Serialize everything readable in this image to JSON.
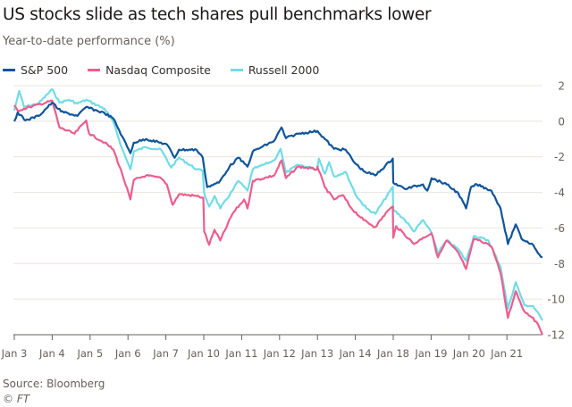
{
  "chart_data": {
    "type": "line",
    "title": "US stocks slide as tech shares pull benchmarks lower",
    "subtitle": "Year-to-date performance (%)",
    "xlabel": "",
    "ylabel": "",
    "categories": [
      "Jan 3",
      "Jan 4",
      "Jan 5",
      "Jan 6",
      "Jan 7",
      "Jan 10",
      "Jan 11",
      "Jan 12",
      "Jan 13",
      "Jan 14",
      "Jan 18",
      "Jan 19",
      "Jan 20",
      "Jan 21"
    ],
    "yticks": [
      2,
      0,
      -2,
      -4,
      -6,
      -8,
      -10,
      -12
    ],
    "ylim": [
      -12,
      2
    ],
    "grid": true,
    "legend_position": "top-left",
    "y_axis_side": "right",
    "series": [
      {
        "name": "S&P 500",
        "color": "#0f5499",
        "points": [
          [
            "Jan 3 09:30",
            0.0
          ],
          [
            "Jan 3 10:05",
            0.5
          ],
          [
            "Jan 3 11:25",
            0.05
          ],
          [
            "Jan 3 13:40",
            0.3
          ],
          [
            "Jan 4 09:30",
            1.05
          ],
          [
            "Jan 4 11:00",
            0.55
          ],
          [
            "Jan 4 13:50",
            0.3
          ],
          [
            "Jan 4 15:20",
            0.8
          ],
          [
            "Jan 5 12:00",
            0.45
          ],
          [
            "Jan 5 13:30",
            0.15
          ],
          [
            "Jan 5 15:00",
            -0.85
          ],
          [
            "Jan 6 09:55",
            -1.8
          ],
          [
            "Jan 6 10:30",
            -1.2
          ],
          [
            "Jan 6 12:35",
            -1.0
          ],
          [
            "Jan 7 09:40",
            -1.3
          ],
          [
            "Jan 7 11:00",
            -2.05
          ],
          [
            "Jan 7 11:45",
            -1.6
          ],
          [
            "Jan 7 14:45",
            -1.6
          ],
          [
            "Jan 7 15:50",
            -2.05
          ],
          [
            "Jan 10 10:05",
            -3.7
          ],
          [
            "Jan 10 12:05",
            -3.45
          ],
          [
            "Jan 10 13:55",
            -2.55
          ],
          [
            "Jan 10 15:25",
            -2.05
          ],
          [
            "Jan 11 10:30",
            -2.55
          ],
          [
            "Jan 11 11:25",
            -1.7
          ],
          [
            "Jan 11 15:05",
            -1.1
          ],
          [
            "Jan 12 09:50",
            -0.35
          ],
          [
            "Jan 12 10:35",
            -0.95
          ],
          [
            "Jan 12 12:40",
            -0.7
          ],
          [
            "Jan 13 09:30",
            -0.55
          ],
          [
            "Jan 13 12:20",
            -1.55
          ],
          [
            "Jan 13 14:20",
            -1.6
          ],
          [
            "Jan 13 15:55",
            -2.35
          ],
          [
            "Jan 14 10:55",
            -2.8
          ],
          [
            "Jan 14 12:55",
            -3.05
          ],
          [
            "Jan 14 15:55",
            -2.1
          ],
          [
            "Jan 18 09:30",
            -3.45
          ],
          [
            "Jan 18 11:30",
            -3.8
          ],
          [
            "Jan 18 14:35",
            -3.55
          ],
          [
            "Jan 18 15:20",
            -3.9
          ],
          [
            "Jan 19 09:35",
            -3.2
          ],
          [
            "Jan 19 12:10",
            -3.55
          ],
          [
            "Jan 19 14:10",
            -4.05
          ],
          [
            "Jan 19 15:30",
            -4.9
          ],
          [
            "Jan 20 09:50",
            -3.7
          ],
          [
            "Jan 20 10:50",
            -3.55
          ],
          [
            "Jan 20 13:20",
            -3.9
          ],
          [
            "Jan 20 14:55",
            -4.9
          ],
          [
            "Jan 21 09:40",
            -6.9
          ],
          [
            "Jan 21 11:00",
            -5.8
          ],
          [
            "Jan 21 12:00",
            -6.6
          ],
          [
            "Jan 21 14:00",
            -6.95
          ],
          [
            "Jan 21 15:05",
            -7.5
          ],
          [
            "Jan 21 15:35",
            -7.65
          ]
        ]
      },
      {
        "name": "Nasdaq Composite",
        "color": "#eb5e8d",
        "points": [
          [
            "Jan 3 09:30",
            0.9
          ],
          [
            "Jan 3 10:05",
            0.6
          ],
          [
            "Jan 3 12:10",
            0.8
          ],
          [
            "Jan 4 09:30",
            1.15
          ],
          [
            "Jan 4 10:45",
            -0.35
          ],
          [
            "Jan 4 13:20",
            -0.7
          ],
          [
            "Jan 4 15:20",
            0.05
          ],
          [
            "Jan 4 15:50",
            -0.7
          ],
          [
            "Jan 5 12:00",
            -1.2
          ],
          [
            "Jan 5 13:30",
            -1.6
          ],
          [
            "Jan 5 15:00",
            -2.95
          ],
          [
            "Jan 6 09:55",
            -4.4
          ],
          [
            "Jan 6 10:30",
            -3.3
          ],
          [
            "Jan 6 12:35",
            -3.05
          ],
          [
            "Jan 6 15:10",
            -3.2
          ],
          [
            "Jan 7 09:40",
            -3.55
          ],
          [
            "Jan 7 10:40",
            -4.7
          ],
          [
            "Jan 7 11:45",
            -4.1
          ],
          [
            "Jan 7 14:45",
            -4.2
          ],
          [
            "Jan 7 15:55",
            -4.3
          ],
          [
            "Jan 10 09:35",
            -6.2
          ],
          [
            "Jan 10 10:25",
            -6.95
          ],
          [
            "Jan 10 11:20",
            -6.1
          ],
          [
            "Jan 10 12:20",
            -6.7
          ],
          [
            "Jan 10 14:25",
            -5.2
          ],
          [
            "Jan 11 09:55",
            -4.4
          ],
          [
            "Jan 11 10:30",
            -4.9
          ],
          [
            "Jan 11 11:25",
            -3.35
          ],
          [
            "Jan 11 15:05",
            -3.05
          ],
          [
            "Jan 12 09:50",
            -2.2
          ],
          [
            "Jan 12 10:35",
            -3.2
          ],
          [
            "Jan 12 12:40",
            -2.55
          ],
          [
            "Jan 12 15:55",
            -2.7
          ],
          [
            "Jan 13 09:30",
            -2.55
          ],
          [
            "Jan 13 10:45",
            -3.7
          ],
          [
            "Jan 13 12:20",
            -4.4
          ],
          [
            "Jan 13 13:50",
            -4.15
          ],
          [
            "Jan 13 15:20",
            -4.9
          ],
          [
            "Jan 14 10:55",
            -5.55
          ],
          [
            "Jan 14 12:55",
            -5.95
          ],
          [
            "Jan 14 15:00",
            -5.05
          ],
          [
            "Jan 14 15:55",
            -4.8
          ],
          [
            "Jan 18 09:30",
            -6.55
          ],
          [
            "Jan 18 10:00",
            -5.9
          ],
          [
            "Jan 18 13:05",
            -6.9
          ],
          [
            "Jan 18 14:35",
            -6.55
          ],
          [
            "Jan 19 09:35",
            -6.3
          ],
          [
            "Jan 19 10:40",
            -7.65
          ],
          [
            "Jan 19 12:10",
            -6.7
          ],
          [
            "Jan 19 14:10",
            -7.4
          ],
          [
            "Jan 19 15:30",
            -8.3
          ],
          [
            "Jan 20 10:20",
            -6.6
          ],
          [
            "Jan 20 12:50",
            -6.9
          ],
          [
            "Jan 20 13:35",
            -7.2
          ],
          [
            "Jan 20 14:55",
            -8.55
          ],
          [
            "Jan 21 09:40",
            -11.05
          ],
          [
            "Jan 21 11:00",
            -9.55
          ],
          [
            "Jan 21 12:30",
            -10.7
          ],
          [
            "Jan 21 14:00",
            -11.05
          ],
          [
            "Jan 21 15:05",
            -11.6
          ],
          [
            "Jan 21 15:35",
            -12.0
          ]
        ]
      },
      {
        "name": "Russell 2000",
        "color": "#70dce6",
        "points": [
          [
            "Jan 3 09:30",
            0.6
          ],
          [
            "Jan 3 10:20",
            1.7
          ],
          [
            "Jan 3 11:10",
            0.8
          ],
          [
            "Jan 3 13:40",
            1.0
          ],
          [
            "Jan 4 09:30",
            1.8
          ],
          [
            "Jan 4 10:45",
            1.05
          ],
          [
            "Jan 4 12:20",
            1.2
          ],
          [
            "Jan 4 13:50",
            1.0
          ],
          [
            "Jan 4 15:20",
            1.2
          ],
          [
            "Jan 5 12:00",
            0.7
          ],
          [
            "Jan 5 13:30",
            -0.05
          ],
          [
            "Jan 5 15:00",
            -1.55
          ],
          [
            "Jan 6 09:55",
            -2.7
          ],
          [
            "Jan 6 10:30",
            -1.7
          ],
          [
            "Jan 6 12:35",
            -1.45
          ],
          [
            "Jan 6 15:10",
            -1.6
          ],
          [
            "Jan 7 10:25",
            -2.6
          ],
          [
            "Jan 7 11:45",
            -2.05
          ],
          [
            "Jan 7 14:45",
            -2.7
          ],
          [
            "Jan 7 15:50",
            -2.8
          ],
          [
            "Jan 10 09:35",
            -4.05
          ],
          [
            "Jan 10 10:25",
            -4.8
          ],
          [
            "Jan 10 11:20",
            -4.2
          ],
          [
            "Jan 10 12:20",
            -4.9
          ],
          [
            "Jan 10 14:25",
            -3.9
          ],
          [
            "Jan 10 15:25",
            -3.35
          ],
          [
            "Jan 11 10:30",
            -3.9
          ],
          [
            "Jan 11 11:25",
            -2.7
          ],
          [
            "Jan 11 15:05",
            -2.2
          ],
          [
            "Jan 12 09:40",
            -1.55
          ],
          [
            "Jan 12 10:35",
            -2.9
          ],
          [
            "Jan 12 12:40",
            -2.45
          ],
          [
            "Jan 12 15:55",
            -2.7
          ],
          [
            "Jan 13 09:45",
            -2.1
          ],
          [
            "Jan 13 10:45",
            -2.95
          ],
          [
            "Jan 13 11:30",
            -2.3
          ],
          [
            "Jan 13 12:20",
            -3.1
          ],
          [
            "Jan 13 14:20",
            -2.85
          ],
          [
            "Jan 14 09:40",
            -4.2
          ],
          [
            "Jan 14 11:25",
            -4.9
          ],
          [
            "Jan 14 12:55",
            -5.2
          ],
          [
            "Jan 14 15:55",
            -3.7
          ],
          [
            "Jan 18 09:30",
            -4.95
          ],
          [
            "Jan 18 11:30",
            -5.55
          ],
          [
            "Jan 18 13:05",
            -6.2
          ],
          [
            "Jan 18 14:35",
            -5.55
          ],
          [
            "Jan 19 09:35",
            -6.3
          ],
          [
            "Jan 19 10:40",
            -7.4
          ],
          [
            "Jan 19 12:10",
            -6.7
          ],
          [
            "Jan 19 14:10",
            -7.2
          ],
          [
            "Jan 19 15:30",
            -7.85
          ],
          [
            "Jan 20 10:20",
            -6.45
          ],
          [
            "Jan 20 12:50",
            -6.7
          ],
          [
            "Jan 20 14:55",
            -8.2
          ],
          [
            "Jan 21 09:40",
            -10.55
          ],
          [
            "Jan 21 11:00",
            -9.05
          ],
          [
            "Jan 21 12:30",
            -10.35
          ],
          [
            "Jan 21 14:00",
            -10.4
          ],
          [
            "Jan 21 15:20",
            -11.05
          ],
          [
            "Jan 21 15:35",
            -11.2
          ]
        ]
      }
    ]
  },
  "footer": {
    "source": "Source: Bloomberg",
    "credit": "© FT"
  }
}
